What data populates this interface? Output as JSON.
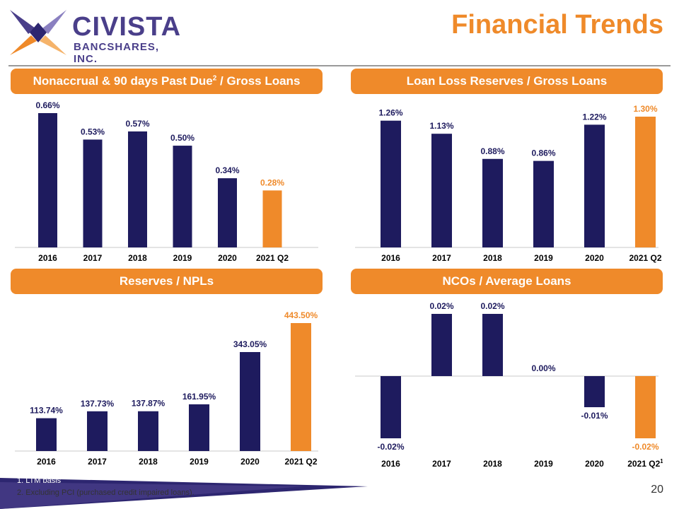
{
  "logo": {
    "name": "CIVISTA",
    "subtitle": "BANCSHARES, INC."
  },
  "page_title": "Financial Trends",
  "colors": {
    "bar": "#1e1b5e",
    "highlight": "#ef8a2a",
    "header": "#ef8a2a",
    "label": "#1e1b5e",
    "axis": "#c8c8c8"
  },
  "panels": [
    {
      "title": "Nonaccrual & 90 days Past Due",
      "title_sup": "2",
      "title_suffix": " / Gross Loans"
    },
    {
      "title": "Loan Loss Reserves / Gross Loans"
    },
    {
      "title": "Reserves / NPLs"
    },
    {
      "title": "NCOs / Average Loans"
    }
  ],
  "chart_data": [
    {
      "type": "bar",
      "title": "Nonaccrual & 90 days Past Due2 / Gross Loans",
      "categories": [
        "2016",
        "2017",
        "2018",
        "2019",
        "2020",
        "2021 Q2"
      ],
      "values": [
        0.66,
        0.53,
        0.57,
        0.5,
        0.34,
        0.28
      ],
      "labels": [
        "0.66%",
        "0.53%",
        "0.57%",
        "0.50%",
        "0.34%",
        "0.28%"
      ],
      "highlight_index": 5,
      "ylim": [
        0,
        0.66
      ]
    },
    {
      "type": "bar",
      "title": "Loan Loss Reserves / Gross Loans",
      "categories": [
        "2016",
        "2017",
        "2018",
        "2019",
        "2020",
        "2021 Q2"
      ],
      "values": [
        1.26,
        1.13,
        0.88,
        0.86,
        1.22,
        1.3
      ],
      "labels": [
        "1.26%",
        "1.13%",
        "0.88%",
        "0.86%",
        "1.22%",
        "1.30%"
      ],
      "highlight_index": 5,
      "ylim": [
        0,
        1.3
      ]
    },
    {
      "type": "bar",
      "title": "Reserves / NPLs",
      "categories": [
        "2016",
        "2017",
        "2018",
        "2019",
        "2020",
        "2021 Q2"
      ],
      "values": [
        113.74,
        137.73,
        137.87,
        161.95,
        343.05,
        443.5
      ],
      "labels": [
        "113.74%",
        "137.73%",
        "137.87%",
        "161.95%",
        "343.05%",
        "443.50%"
      ],
      "highlight_index": 5,
      "ylim": [
        0,
        443.5
      ]
    },
    {
      "type": "bar",
      "title": "NCOs / Average Loans",
      "categories": [
        "2016",
        "2017",
        "2018",
        "2019",
        "2020",
        "2021 Q2"
      ],
      "category_sup": [
        "",
        "",
        "",
        "",
        "",
        "1"
      ],
      "values": [
        -0.02,
        0.02,
        0.02,
        0.0,
        -0.01,
        -0.02
      ],
      "labels": [
        "-0.02%",
        "0.02%",
        "0.02%",
        "0.00%",
        "-0.01%",
        "-0.02%"
      ],
      "highlight_index": 5,
      "ylim": [
        -0.02,
        0.02
      ]
    }
  ],
  "footnotes": [
    "1. LTM basis",
    "2. Excluding PCI (purchased credit impaired loans)."
  ],
  "page_number": "20"
}
